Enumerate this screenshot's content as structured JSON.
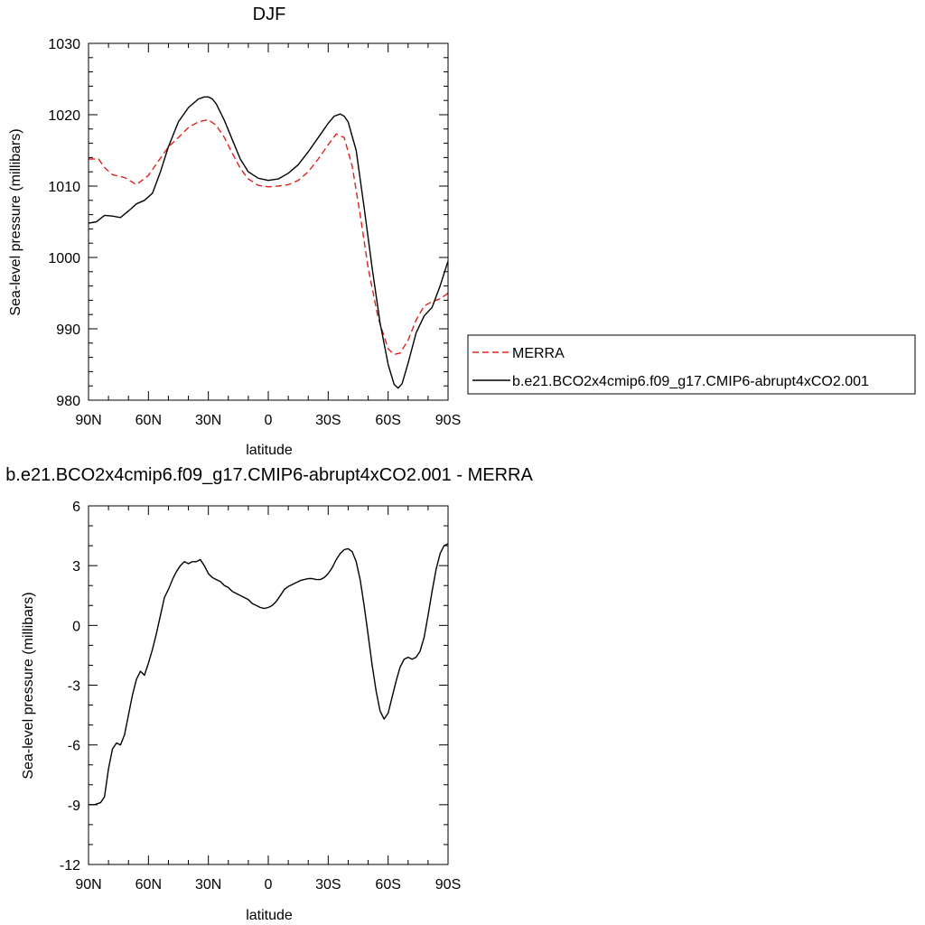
{
  "chart_data": [
    {
      "type": "line",
      "title": "DJF",
      "xlabel": "latitude",
      "ylabel": "Sea-level pressure (millibars)",
      "xlim": [
        90,
        -90
      ],
      "ylim": [
        980,
        1030
      ],
      "xticks": [
        90,
        60,
        30,
        0,
        -30,
        -60,
        -90
      ],
      "xtick_labels": [
        "90N",
        "60N",
        "30N",
        "0",
        "30S",
        "60S",
        "90S"
      ],
      "yticks": [
        980,
        990,
        1000,
        1010,
        1020,
        1030
      ],
      "ytick_labels": [
        "980",
        "990",
        "1000",
        "1010",
        "1020",
        "1030"
      ],
      "legend_position": "right",
      "series": [
        {
          "name": "MERRA",
          "color": "#e0201b",
          "dash": "dashed",
          "x": [
            90,
            85,
            82,
            78,
            72,
            66,
            60,
            55,
            50,
            45,
            40,
            35,
            30,
            26,
            22,
            18,
            14,
            10,
            5,
            0,
            -5,
            -10,
            -15,
            -20,
            -25,
            -30,
            -34,
            -38,
            -42,
            -46,
            -50,
            -55,
            -60,
            -63,
            -66,
            -70,
            -74,
            -78,
            -82,
            -86,
            -90
          ],
          "values": [
            1013.8,
            1013.8,
            1012.6,
            1011.6,
            1011.2,
            1010.2,
            1011.5,
            1013.5,
            1015.5,
            1016.8,
            1018.2,
            1019.0,
            1019.3,
            1018.5,
            1016.8,
            1014.6,
            1012.5,
            1011.0,
            1010.1,
            1009.9,
            1010.0,
            1010.2,
            1010.8,
            1012.0,
            1013.8,
            1015.8,
            1017.3,
            1016.8,
            1012.8,
            1006.0,
            998.5,
            991.5,
            987.2,
            986.4,
            986.6,
            988.4,
            991.2,
            993.2,
            993.8,
            994.2,
            995.0
          ]
        },
        {
          "name": "b.e21.BCO2x4cmip6.f09_g17.CMIP6-abrupt4xCO2.001",
          "color": "#000000",
          "dash": "solid",
          "x": [
            90,
            86,
            82,
            78,
            74,
            70,
            66,
            62,
            58,
            54,
            50,
            45,
            40,
            35,
            32,
            30,
            28,
            26,
            22,
            18,
            14,
            10,
            5,
            0,
            -5,
            -10,
            -15,
            -20,
            -25,
            -30,
            -33,
            -36,
            -38,
            -40,
            -44,
            -48,
            -52,
            -56,
            -60,
            -63,
            -65,
            -67,
            -70,
            -74,
            -78,
            -82,
            -86,
            -90
          ],
          "values": [
            1004.8,
            1005.0,
            1005.9,
            1005.8,
            1005.6,
            1006.5,
            1007.5,
            1008.0,
            1009.0,
            1012.0,
            1015.5,
            1019.0,
            1021.0,
            1022.2,
            1022.5,
            1022.5,
            1022.2,
            1021.5,
            1019.2,
            1016.5,
            1013.8,
            1012.0,
            1011.1,
            1010.8,
            1011.0,
            1011.8,
            1013.0,
            1014.8,
            1016.8,
            1018.8,
            1019.8,
            1020.1,
            1019.8,
            1019.0,
            1015.0,
            1007.0,
            998.5,
            990.8,
            985.0,
            982.2,
            981.7,
            982.3,
            985.2,
            989.4,
            991.8,
            993.0,
            996.0,
            999.5
          ]
        }
      ]
    },
    {
      "type": "line",
      "title": "b.e21.BCO2x4cmip6.f09_g17.CMIP6-abrupt4xCO2.001 - MERRA",
      "xlabel": "latitude",
      "ylabel": "Sea-level pressure (millibars)",
      "xlim": [
        90,
        -90
      ],
      "ylim": [
        -12,
        6
      ],
      "xticks": [
        90,
        60,
        30,
        0,
        -30,
        -60,
        -90
      ],
      "xtick_labels": [
        "90N",
        "60N",
        "30N",
        "0",
        "30S",
        "60S",
        "90S"
      ],
      "yticks": [
        -12,
        -9,
        -6,
        -3,
        0,
        3,
        6
      ],
      "ytick_labels": [
        "-12",
        "-9",
        "-6",
        "-3",
        "0",
        "3",
        "6"
      ],
      "series": [
        {
          "color": "#000000",
          "dash": "solid",
          "x": [
            90,
            87,
            84,
            82,
            80,
            78,
            76,
            74,
            72,
            70,
            68,
            66,
            64,
            62,
            60,
            58,
            56,
            54,
            52,
            50,
            48,
            46,
            44,
            42,
            40,
            38,
            36,
            34,
            32,
            30,
            28,
            26,
            24,
            22,
            20,
            18,
            16,
            14,
            12,
            10,
            8,
            6,
            4,
            2,
            0,
            -2,
            -4,
            -6,
            -8,
            -10,
            -12,
            -14,
            -16,
            -18,
            -20,
            -22,
            -24,
            -26,
            -28,
            -30,
            -32,
            -34,
            -36,
            -38,
            -40,
            -42,
            -44,
            -46,
            -48,
            -50,
            -52,
            -54,
            -56,
            -58,
            -60,
            -62,
            -64,
            -66,
            -68,
            -70,
            -72,
            -74,
            -76,
            -78,
            -80,
            -82,
            -84,
            -86,
            -88,
            -90
          ],
          "values": [
            -9.0,
            -9.0,
            -8.9,
            -8.6,
            -7.2,
            -6.2,
            -5.9,
            -6.0,
            -5.5,
            -4.5,
            -3.5,
            -2.7,
            -2.3,
            -2.5,
            -1.9,
            -1.2,
            -0.4,
            0.5,
            1.4,
            1.8,
            2.3,
            2.7,
            3.0,
            3.2,
            3.1,
            3.2,
            3.2,
            3.3,
            3.0,
            2.6,
            2.4,
            2.3,
            2.2,
            2.0,
            1.9,
            1.7,
            1.6,
            1.5,
            1.4,
            1.3,
            1.1,
            1.0,
            0.9,
            0.85,
            0.9,
            1.0,
            1.2,
            1.5,
            1.8,
            1.95,
            2.05,
            2.15,
            2.25,
            2.3,
            2.35,
            2.35,
            2.3,
            2.3,
            2.4,
            2.6,
            2.9,
            3.3,
            3.6,
            3.8,
            3.85,
            3.7,
            3.2,
            2.3,
            1.0,
            -0.5,
            -2.0,
            -3.3,
            -4.3,
            -4.7,
            -4.4,
            -3.6,
            -2.8,
            -2.1,
            -1.7,
            -1.6,
            -1.7,
            -1.6,
            -1.3,
            -0.6,
            0.5,
            1.7,
            2.8,
            3.6,
            4.0,
            4.1
          ]
        }
      ]
    }
  ]
}
